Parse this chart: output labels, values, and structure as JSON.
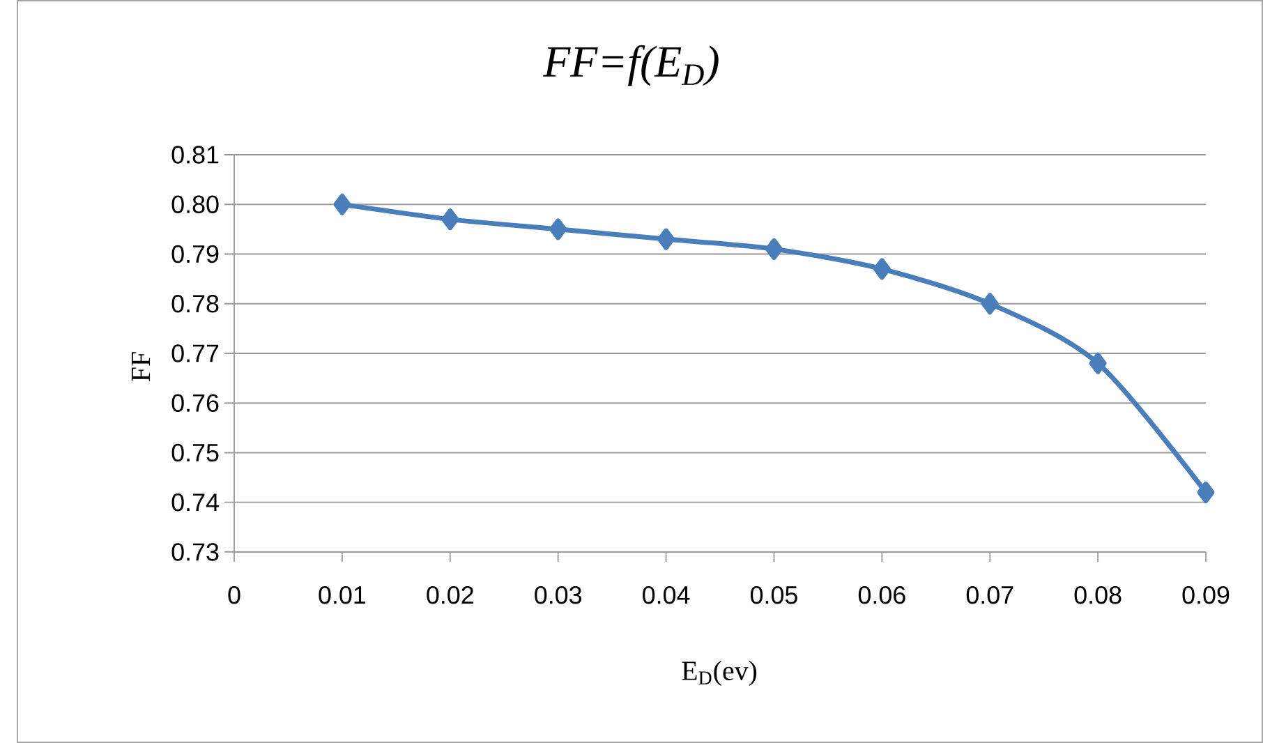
{
  "chart_data": {
    "type": "line",
    "title": "FF=f(E$_{D}$)",
    "xlabel": "E$_{D}$(ev)",
    "ylabel": "FF",
    "x": [
      0.01,
      0.02,
      0.03,
      0.04,
      0.05,
      0.06,
      0.07,
      0.08,
      0.09
    ],
    "series": [
      {
        "color": "#4a7ebb",
        "values": [
          0.8,
          0.797,
          0.795,
          0.793,
          0.791,
          0.787,
          0.78,
          0.768,
          0.742
        ]
      }
    ],
    "xlim": [
      0,
      0.09
    ],
    "xticks": [
      0,
      0.01,
      0.02,
      0.03,
      0.04,
      0.05,
      0.06,
      0.07,
      0.08,
      0.09
    ],
    "ylim": [
      0.73,
      0.81
    ],
    "yticks": [
      0.73,
      0.74,
      0.75,
      0.76,
      0.77,
      0.78,
      0.79,
      {
        "value": 0.8,
        "label": "0.80"
      },
      0.81
    ],
    "grid": "y",
    "marker": "diamond",
    "line_style": "solid"
  }
}
